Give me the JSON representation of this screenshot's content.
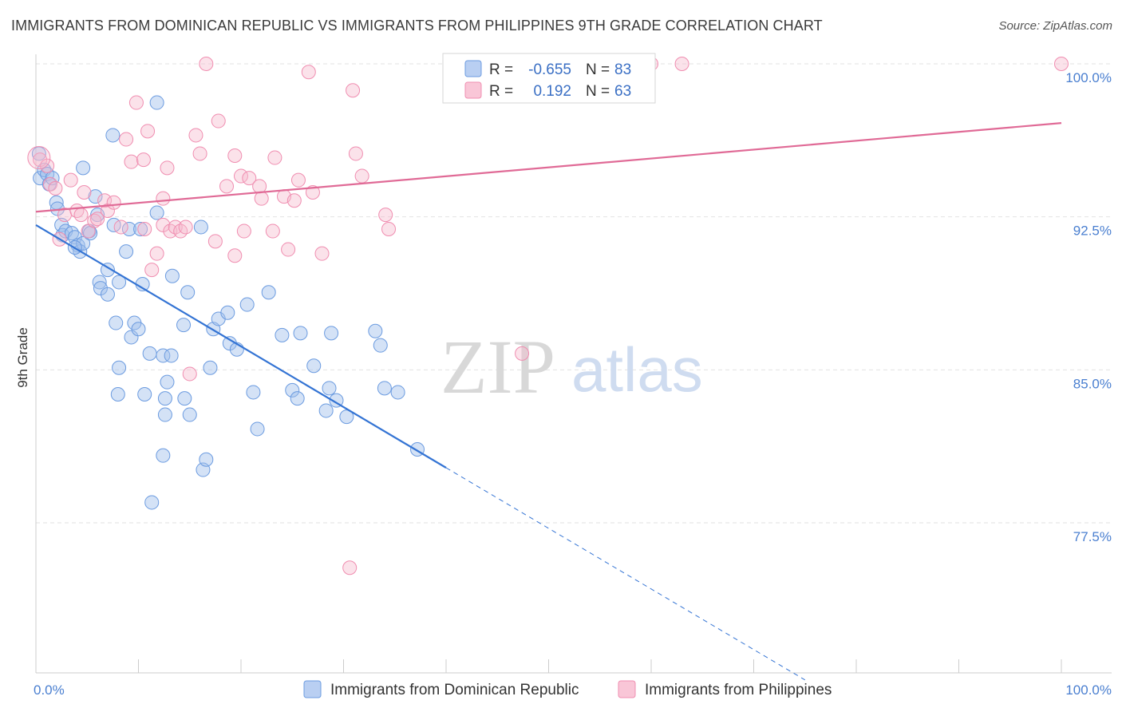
{
  "header": {
    "title": "IMMIGRANTS FROM DOMINICAN REPUBLIC VS IMMIGRANTS FROM PHILIPPINES 9TH GRADE CORRELATION CHART",
    "source": "Source: ZipAtlas.com"
  },
  "watermark": {
    "zip": "ZIP",
    "atlas": "atlas"
  },
  "legend": {
    "r_label": "R =",
    "n_label": "N =",
    "rows": [
      {
        "r_value": "-0.655",
        "n_value": "83"
      },
      {
        "r_value": "0.192",
        "n_value": "63"
      }
    ]
  },
  "chart_data": {
    "type": "scatter",
    "title": "IMMIGRANTS FROM DOMINICAN REPUBLIC VS IMMIGRANTS FROM PHILIPPINES 9TH GRADE CORRELATION CHART",
    "xlabel": "",
    "ylabel": "9th Grade",
    "xlim": [
      0,
      100
    ],
    "ylim": [
      70.0,
      101.5
    ],
    "x_tick_labels": [
      "0.0%",
      "100.0%"
    ],
    "y_ticks": [
      {
        "value": 100.0,
        "label": "100.0%"
      },
      {
        "value": 92.5,
        "label": "92.5%"
      },
      {
        "value": 85.0,
        "label": "85.0%"
      },
      {
        "value": 77.5,
        "label": "77.5%"
      }
    ],
    "grid": "horizontal dashed",
    "legend_position": "top-center",
    "series": [
      {
        "name": "Immigrants from Dominican Republic",
        "color": "#6b9be0",
        "r": -0.655,
        "n": 83,
        "trend": {
          "x0": 0,
          "y0": 92.1,
          "x1": 40,
          "y1": 80.2,
          "dash_to_x": 75,
          "dash_to_y": 69.8
        },
        "points": [
          [
            0.3,
            95.6
          ],
          [
            0.4,
            94.4
          ],
          [
            0.8,
            94.8
          ],
          [
            1.1,
            94.6
          ],
          [
            1.3,
            94.1
          ],
          [
            1.6,
            94.4
          ],
          [
            2.0,
            93.2
          ],
          [
            2.1,
            92.9
          ],
          [
            2.5,
            92.1
          ],
          [
            2.6,
            91.6
          ],
          [
            2.9,
            91.8
          ],
          [
            3.5,
            91.7
          ],
          [
            3.8,
            91.5
          ],
          [
            4.1,
            91.1
          ],
          [
            4.3,
            90.8
          ],
          [
            4.6,
            91.2
          ],
          [
            4.6,
            94.9
          ],
          [
            5.2,
            91.8
          ],
          [
            5.8,
            93.5
          ],
          [
            6.0,
            92.6
          ],
          [
            6.2,
            89.3
          ],
          [
            6.3,
            89.0
          ],
          [
            7.0,
            88.7
          ],
          [
            7.0,
            89.9
          ],
          [
            7.5,
            96.5
          ],
          [
            7.6,
            92.1
          ],
          [
            7.8,
            87.3
          ],
          [
            8.1,
            85.1
          ],
          [
            8.0,
            83.8
          ],
          [
            8.1,
            89.3
          ],
          [
            8.8,
            90.8
          ],
          [
            9.1,
            91.9
          ],
          [
            9.3,
            86.6
          ],
          [
            9.6,
            87.3
          ],
          [
            10.0,
            87.0
          ],
          [
            10.2,
            91.9
          ],
          [
            10.4,
            89.2
          ],
          [
            10.6,
            83.8
          ],
          [
            11.1,
            85.8
          ],
          [
            11.3,
            78.5
          ],
          [
            11.8,
            92.7
          ],
          [
            11.8,
            98.1
          ],
          [
            12.4,
            80.8
          ],
          [
            12.4,
            85.7
          ],
          [
            12.6,
            82.8
          ],
          [
            12.6,
            83.6
          ],
          [
            12.8,
            84.4
          ],
          [
            13.2,
            85.7
          ],
          [
            13.3,
            89.6
          ],
          [
            14.4,
            87.2
          ],
          [
            14.5,
            83.6
          ],
          [
            14.8,
            88.8
          ],
          [
            15.0,
            82.8
          ],
          [
            16.1,
            92.0
          ],
          [
            16.3,
            80.1
          ],
          [
            16.6,
            80.6
          ],
          [
            17.0,
            85.1
          ],
          [
            17.3,
            87.0
          ],
          [
            17.8,
            87.5
          ],
          [
            18.7,
            87.8
          ],
          [
            18.9,
            86.3
          ],
          [
            19.6,
            86.0
          ],
          [
            20.6,
            88.2
          ],
          [
            21.2,
            83.9
          ],
          [
            21.6,
            82.1
          ],
          [
            22.7,
            88.8
          ],
          [
            24.0,
            86.7
          ],
          [
            25.0,
            84.0
          ],
          [
            25.5,
            83.6
          ],
          [
            25.8,
            86.8
          ],
          [
            27.1,
            85.2
          ],
          [
            28.3,
            83.0
          ],
          [
            28.6,
            84.1
          ],
          [
            28.8,
            86.8
          ],
          [
            29.3,
            83.5
          ],
          [
            30.3,
            82.7
          ],
          [
            33.1,
            86.9
          ],
          [
            33.6,
            86.2
          ],
          [
            34.0,
            84.1
          ],
          [
            35.3,
            83.9
          ],
          [
            37.2,
            81.1
          ],
          [
            3.8,
            91.0
          ],
          [
            5.3,
            91.7
          ]
        ]
      },
      {
        "name": "Immigrants from Philippines",
        "color": "#f08db0",
        "r": 0.192,
        "n": 63,
        "trend": {
          "x0": 0,
          "y0": 92.75,
          "x1": 100,
          "y1": 97.1
        },
        "points": [
          [
            0.4,
            95.3
          ],
          [
            1.1,
            95.0
          ],
          [
            1.4,
            94.1
          ],
          [
            1.9,
            93.9
          ],
          [
            2.3,
            91.4
          ],
          [
            2.8,
            92.6
          ],
          [
            3.4,
            94.3
          ],
          [
            4.0,
            92.8
          ],
          [
            4.4,
            92.6
          ],
          [
            4.7,
            93.7
          ],
          [
            5.1,
            91.8
          ],
          [
            5.7,
            92.3
          ],
          [
            6.0,
            92.4
          ],
          [
            6.7,
            93.3
          ],
          [
            7.0,
            92.8
          ],
          [
            7.6,
            93.2
          ],
          [
            8.3,
            92.0
          ],
          [
            8.8,
            96.3
          ],
          [
            9.3,
            95.2
          ],
          [
            9.8,
            98.1
          ],
          [
            10.5,
            95.3
          ],
          [
            10.6,
            91.9
          ],
          [
            10.9,
            96.7
          ],
          [
            11.3,
            89.9
          ],
          [
            11.8,
            90.7
          ],
          [
            12.4,
            92.1
          ],
          [
            12.4,
            93.4
          ],
          [
            12.8,
            94.9
          ],
          [
            13.1,
            91.8
          ],
          [
            13.6,
            92.0
          ],
          [
            14.1,
            91.8
          ],
          [
            14.6,
            92.0
          ],
          [
            15.0,
            84.8
          ],
          [
            15.6,
            96.5
          ],
          [
            16.0,
            95.6
          ],
          [
            16.6,
            100.0
          ],
          [
            17.5,
            91.3
          ],
          [
            17.8,
            97.2
          ],
          [
            18.6,
            94.0
          ],
          [
            19.4,
            95.5
          ],
          [
            19.4,
            90.6
          ],
          [
            20.0,
            94.5
          ],
          [
            20.3,
            91.8
          ],
          [
            20.8,
            94.4
          ],
          [
            21.8,
            94.0
          ],
          [
            22.0,
            93.4
          ],
          [
            23.1,
            91.8
          ],
          [
            23.3,
            95.4
          ],
          [
            24.2,
            93.5
          ],
          [
            24.6,
            90.9
          ],
          [
            25.2,
            93.3
          ],
          [
            25.6,
            94.3
          ],
          [
            26.6,
            99.6
          ],
          [
            27.0,
            93.7
          ],
          [
            27.9,
            90.7
          ],
          [
            30.6,
            75.3
          ],
          [
            30.9,
            98.7
          ],
          [
            31.2,
            95.6
          ],
          [
            31.8,
            94.5
          ],
          [
            34.1,
            92.6
          ],
          [
            34.4,
            91.9
          ],
          [
            47.4,
            85.8
          ],
          [
            60.0,
            100.0
          ]
        ],
        "extra_points": [
          [
            63.0,
            100.0
          ],
          [
            100.0,
            100.0
          ]
        ]
      }
    ]
  },
  "bottom_legend": [
    {
      "label": "Immigrants from Dominican Republic"
    },
    {
      "label": "Immigrants from Philippines"
    }
  ]
}
